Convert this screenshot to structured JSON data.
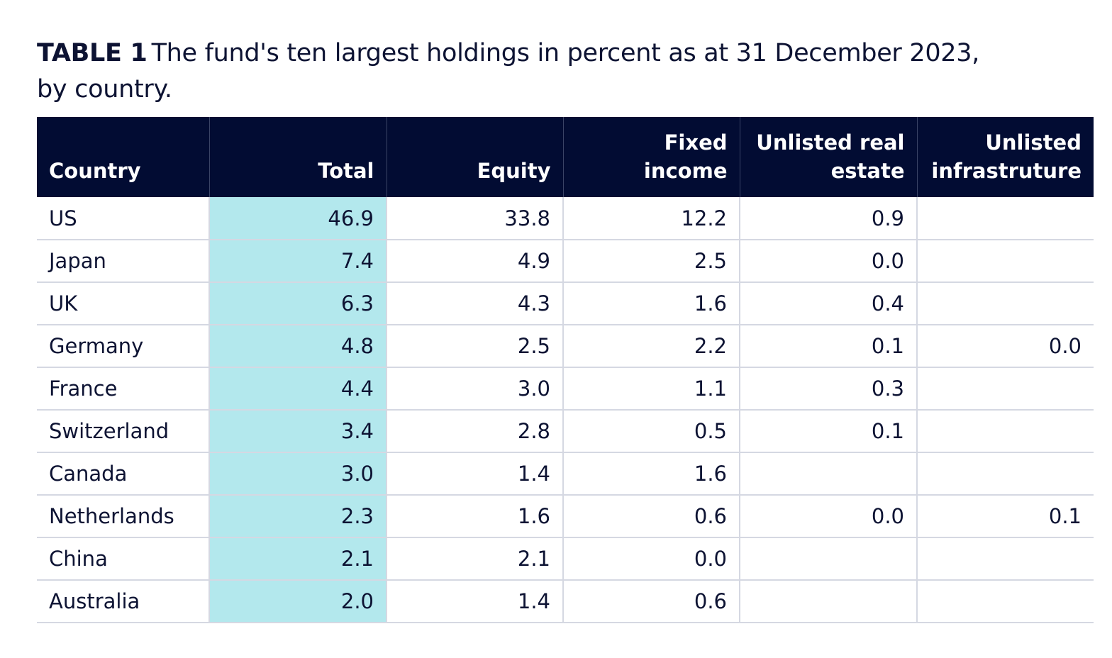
{
  "caption": {
    "label": "TABLE 1",
    "text": "The fund's ten largest holdings in percent as at 31 December 2023, by  country."
  },
  "table": {
    "headers": [
      "Country",
      "Total",
      "Equity",
      "Fixed income",
      "Unlisted real estate",
      "Unlisted infrastruture"
    ],
    "rows": [
      [
        "US",
        "46.9",
        "33.8",
        "12.2",
        "0.9",
        ""
      ],
      [
        "Japan",
        "7.4",
        "4.9",
        "2.5",
        "0.0",
        ""
      ],
      [
        "UK",
        "6.3",
        "4.3",
        "1.6",
        "0.4",
        ""
      ],
      [
        "Germany",
        "4.8",
        "2.5",
        "2.2",
        "0.1",
        "0.0"
      ],
      [
        "France",
        "4.4",
        "3.0",
        "1.1",
        "0.3",
        ""
      ],
      [
        "Switzerland",
        "3.4",
        "2.8",
        "0.5",
        "0.1",
        ""
      ],
      [
        "Canada",
        "3.0",
        "1.4",
        "1.6",
        "",
        ""
      ],
      [
        "Netherlands",
        "2.3",
        "1.6",
        "0.6",
        "0.0",
        "0.1"
      ],
      [
        "China",
        "2.1",
        "2.1",
        "0.0",
        "",
        ""
      ],
      [
        "Australia",
        "2.0",
        "1.4",
        "0.6",
        "",
        ""
      ]
    ]
  },
  "colors": {
    "header_background": "#020c33",
    "total_column_highlight": "#b3e8ed",
    "text": "#0d1333",
    "row_divider": "#d5d8e2"
  }
}
